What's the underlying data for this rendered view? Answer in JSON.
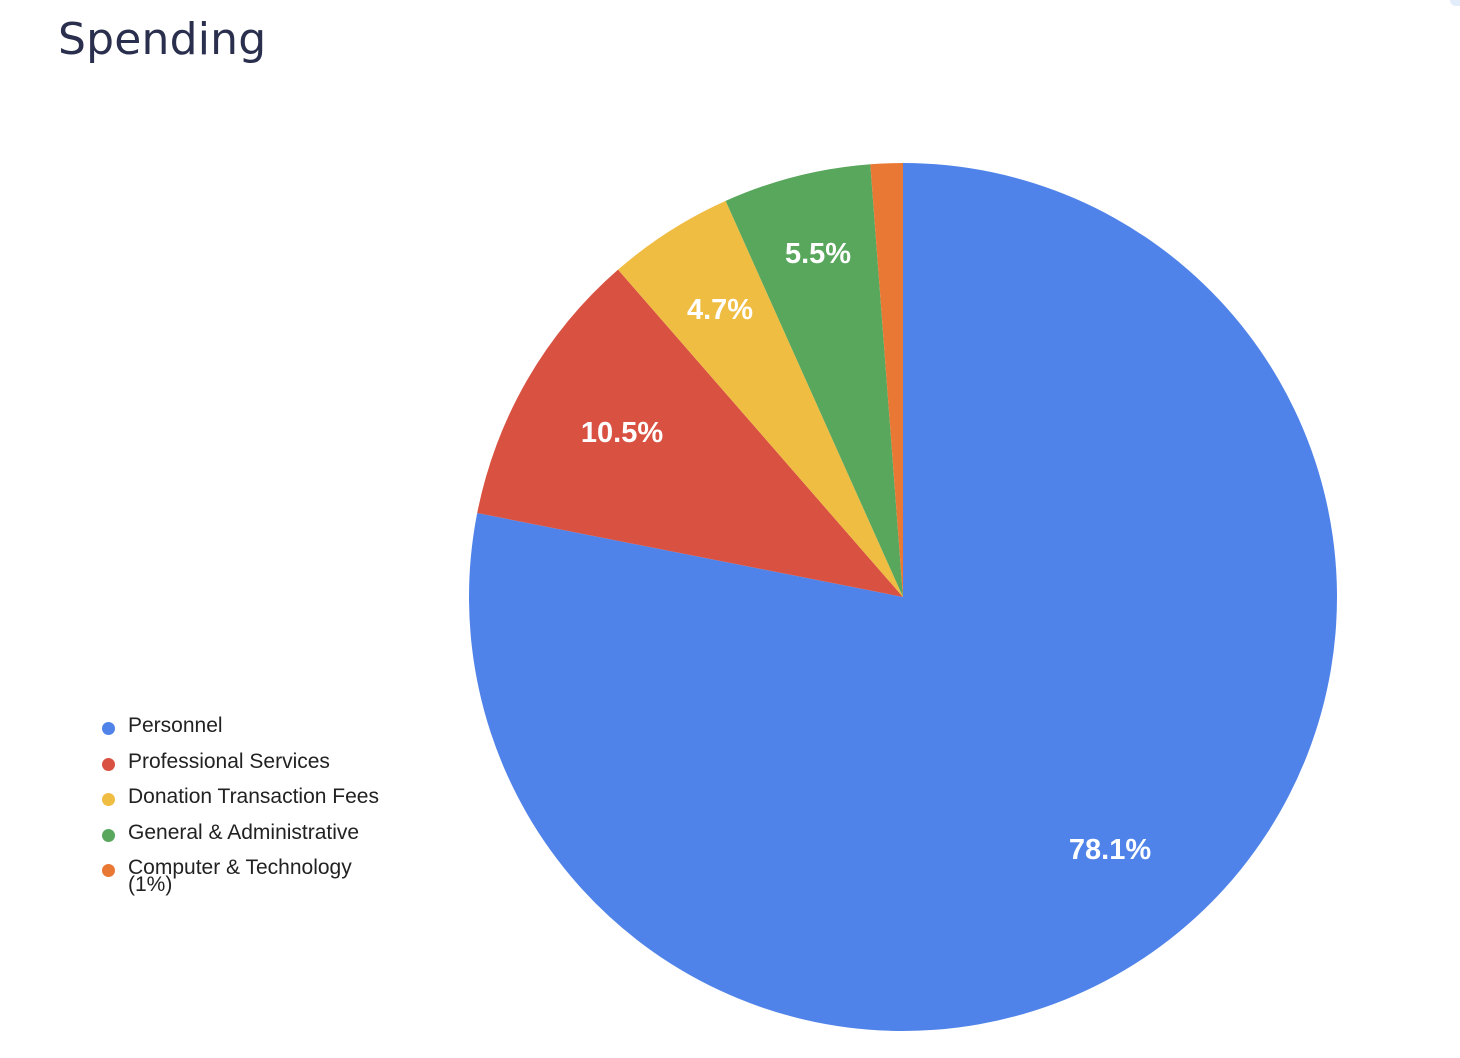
{
  "page": {
    "title": "Spending"
  },
  "chart_data": {
    "type": "pie",
    "title": "Spending",
    "start_angle_deg": 0,
    "direction": "clockwise",
    "legend_position": "left-bottom",
    "slices": [
      {
        "label": "Personnel",
        "value": 78.1,
        "display": "78.1%",
        "color": "#5083e9"
      },
      {
        "label": "Professional Services",
        "value": 10.5,
        "display": "10.5%",
        "color": "#d85141"
      },
      {
        "label": "Donation Transaction Fees",
        "value": 4.7,
        "display": "4.7%",
        "color": "#f0bd43"
      },
      {
        "label": "General & Administrative",
        "value": 5.5,
        "display": "5.5%",
        "color": "#58a75c"
      },
      {
        "label": "Computer & Technology\n(1%)",
        "value": 1.2,
        "display": "",
        "color": "#ea7835"
      }
    ]
  }
}
